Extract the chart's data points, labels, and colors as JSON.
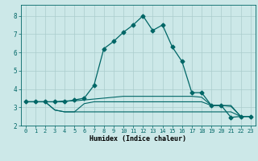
{
  "xlabel": "Humidex (Indice chaleur)",
  "bg_color": "#cce8e8",
  "line_color": "#006666",
  "grid_color": "#aacccc",
  "xlim": [
    -0.5,
    23.5
  ],
  "ylim": [
    2.0,
    8.6
  ],
  "yticks": [
    2,
    3,
    4,
    5,
    6,
    7,
    8
  ],
  "xticks": [
    0,
    1,
    2,
    3,
    4,
    5,
    6,
    7,
    8,
    9,
    10,
    11,
    12,
    13,
    14,
    15,
    16,
    17,
    18,
    19,
    20,
    21,
    22,
    23
  ],
  "series": [
    {
      "x": [
        0,
        1,
        2,
        3,
        4,
        5,
        6,
        7,
        8,
        9,
        10,
        11,
        12,
        13,
        14,
        15,
        16,
        17,
        18,
        19,
        20,
        21,
        22,
        23
      ],
      "y": [
        3.3,
        3.3,
        3.3,
        3.3,
        3.3,
        3.4,
        3.5,
        4.2,
        6.2,
        6.6,
        7.1,
        7.5,
        8.0,
        7.2,
        7.5,
        6.3,
        5.5,
        3.8,
        3.8,
        3.1,
        3.1,
        2.45,
        2.5,
        2.5
      ],
      "marker": "D",
      "markersize": 2.5,
      "linewidth": 0.9,
      "has_marker": true
    },
    {
      "x": [
        0,
        1,
        2,
        3,
        4,
        5,
        6,
        7,
        8,
        9,
        10,
        11,
        12,
        13,
        14,
        15,
        16,
        17,
        18,
        19,
        20,
        21,
        22,
        23
      ],
      "y": [
        3.3,
        3.3,
        3.3,
        3.3,
        3.35,
        3.35,
        3.4,
        3.45,
        3.5,
        3.55,
        3.6,
        3.6,
        3.6,
        3.6,
        3.6,
        3.6,
        3.6,
        3.6,
        3.55,
        3.1,
        3.1,
        3.05,
        2.5,
        2.5
      ],
      "marker": null,
      "linewidth": 0.8,
      "has_marker": false
    },
    {
      "x": [
        0,
        1,
        2,
        3,
        4,
        5,
        6,
        7,
        8,
        9,
        10,
        11,
        12,
        13,
        14,
        15,
        16,
        17,
        18,
        19,
        20,
        21,
        22,
        23
      ],
      "y": [
        3.3,
        3.3,
        3.3,
        2.85,
        2.75,
        2.75,
        3.2,
        3.3,
        3.3,
        3.3,
        3.3,
        3.3,
        3.3,
        3.3,
        3.3,
        3.3,
        3.3,
        3.3,
        3.3,
        3.1,
        3.1,
        3.1,
        2.5,
        2.5
      ],
      "marker": null,
      "linewidth": 0.8,
      "has_marker": false
    },
    {
      "x": [
        0,
        1,
        2,
        3,
        4,
        5,
        6,
        7,
        8,
        9,
        10,
        11,
        12,
        13,
        14,
        15,
        16,
        17,
        18,
        19,
        20,
        21,
        22,
        23
      ],
      "y": [
        3.3,
        3.3,
        3.3,
        2.85,
        2.75,
        2.75,
        2.75,
        2.75,
        2.75,
        2.75,
        2.75,
        2.75,
        2.75,
        2.75,
        2.75,
        2.75,
        2.75,
        2.75,
        2.75,
        2.75,
        2.75,
        2.75,
        2.5,
        2.5
      ],
      "marker": null,
      "linewidth": 0.8,
      "has_marker": false
    }
  ]
}
